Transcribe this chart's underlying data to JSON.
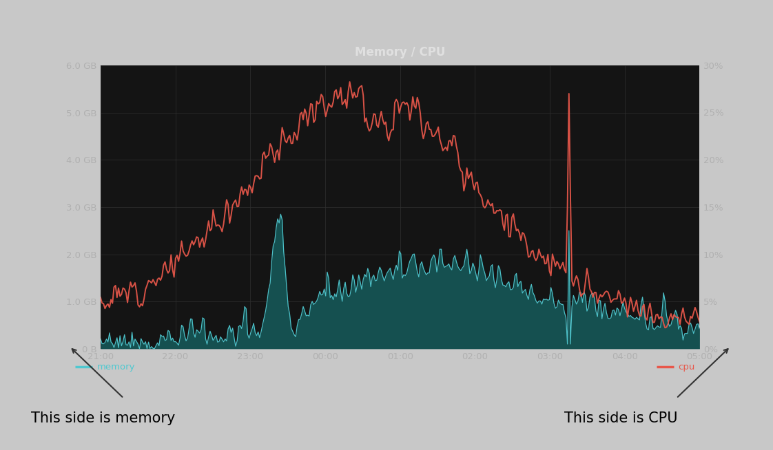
{
  "title": "Memory / CPU",
  "outer_bg_color": "#c8c8c8",
  "panel_bg_color": "#1f1f1f",
  "plot_bg_color": "#141414",
  "grid_color": "#2e2e2e",
  "text_color": "#b0b0b0",
  "title_color": "#e0e0e0",
  "memory_color": "#50c8d0",
  "memory_fill_color": "#155050",
  "cpu_color": "#e8574a",
  "x_labels": [
    "21:00",
    "22:00",
    "23:00",
    "00:00",
    "01:00",
    "02:00",
    "03:00",
    "04:00",
    "05:00"
  ],
  "y_left_labels": [
    "0 B",
    "1.0 GB",
    "2.0 GB",
    "3.0 GB",
    "4.0 GB",
    "5.0 GB",
    "6.0 GB"
  ],
  "y_left_values": [
    0,
    1,
    2,
    3,
    4,
    5,
    6
  ],
  "y_right_labels": [
    "0%",
    "5%",
    "10%",
    "15%",
    "20%",
    "25%",
    "30%"
  ],
  "y_right_values": [
    0,
    5,
    10,
    15,
    20,
    25,
    30
  ],
  "legend_memory": "memory",
  "legend_cpu": "cpu",
  "annotation_left": "This side is memory",
  "annotation_right": "This side is CPU",
  "n_points": 400
}
